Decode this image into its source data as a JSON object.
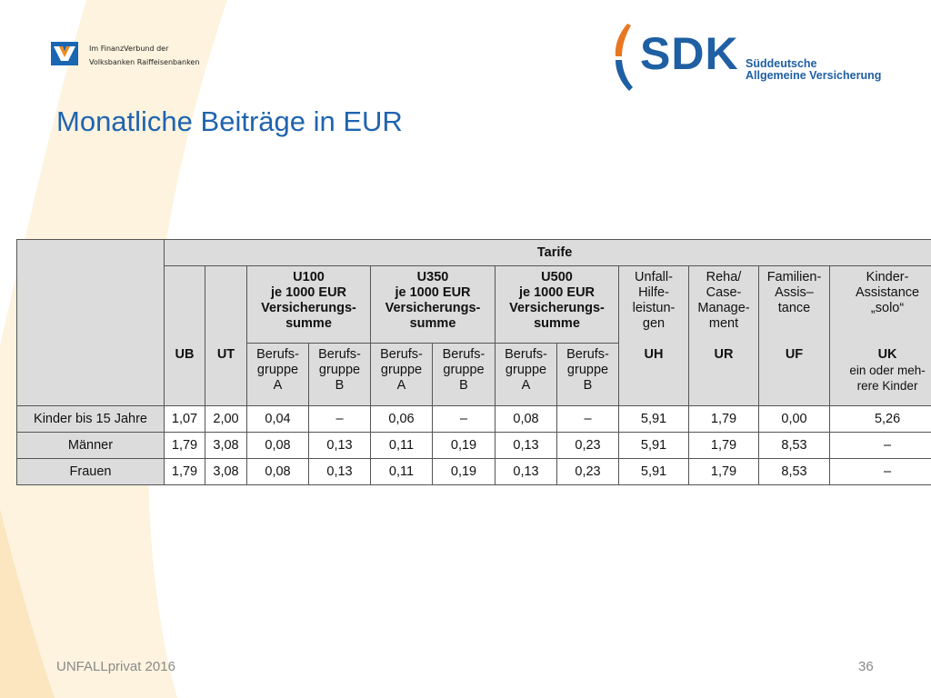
{
  "header": {
    "vr_logo_line1": "Im FinanzVerbund der",
    "vr_logo_line2": "Volksbanken Raiffeisenbanken",
    "sdk_word": "SDK",
    "sdk_sub_line1": "Süddeutsche",
    "sdk_sub_line2": "Allgemeine Versicherung"
  },
  "title": "Monatliche Beiträge in EUR",
  "table": {
    "group_header": "Tarife",
    "headers": {
      "ub": "UB",
      "ut": "UT",
      "u100": [
        "U100",
        "je 1000 EUR",
        "Versicherungs-",
        "summe"
      ],
      "u350": [
        "U350",
        "je 1000 EUR",
        "Versicherungs-",
        "summe"
      ],
      "u500": [
        "U500",
        "je 1000 EUR",
        "Versicherungs-",
        "summe"
      ],
      "uh": [
        "Unfall-",
        "Hilfe-",
        "leistun-",
        "gen"
      ],
      "ur": [
        "Reha/",
        "Case-",
        "Manage-",
        "ment"
      ],
      "uf": [
        "Familien-",
        "Assis–",
        "tance"
      ],
      "uk": [
        "Kinder-",
        "Assistance",
        "„solo“"
      ],
      "berufs_a": [
        "Berufs-",
        "gruppe",
        "A"
      ],
      "berufs_b": [
        "Berufs-",
        "gruppe",
        "B"
      ],
      "code_uh": "UH",
      "code_ur": "UR",
      "code_uf": "UF",
      "code_uk": "UK",
      "uk_note": [
        "ein oder meh-",
        "rere Kinder"
      ]
    },
    "rows": [
      {
        "label": "Kinder bis 15 Jahre",
        "values": [
          "1,07",
          "2,00",
          "0,04",
          "–",
          "0,06",
          "–",
          "0,08",
          "–",
          "5,91",
          "1,79",
          "0,00",
          "5,26"
        ]
      },
      {
        "label": "Männer",
        "values": [
          "1,79",
          "3,08",
          "0,08",
          "0,13",
          "0,11",
          "0,19",
          "0,13",
          "0,23",
          "5,91",
          "1,79",
          "8,53",
          "–"
        ]
      },
      {
        "label": "Frauen",
        "values": [
          "1,79",
          "3,08",
          "0,08",
          "0,13",
          "0,11",
          "0,19",
          "0,13",
          "0,23",
          "5,91",
          "1,79",
          "8,53",
          "–"
        ]
      }
    ]
  },
  "footer": {
    "left": "UNFALLprivat 2016",
    "page_number": "36"
  },
  "colors": {
    "title_blue": "#1f64b0",
    "sdk_blue": "#1f5fa3",
    "sdk_orange": "#e87722",
    "header_grey": "#dcdcdc",
    "swoosh": "#fdf3df"
  }
}
